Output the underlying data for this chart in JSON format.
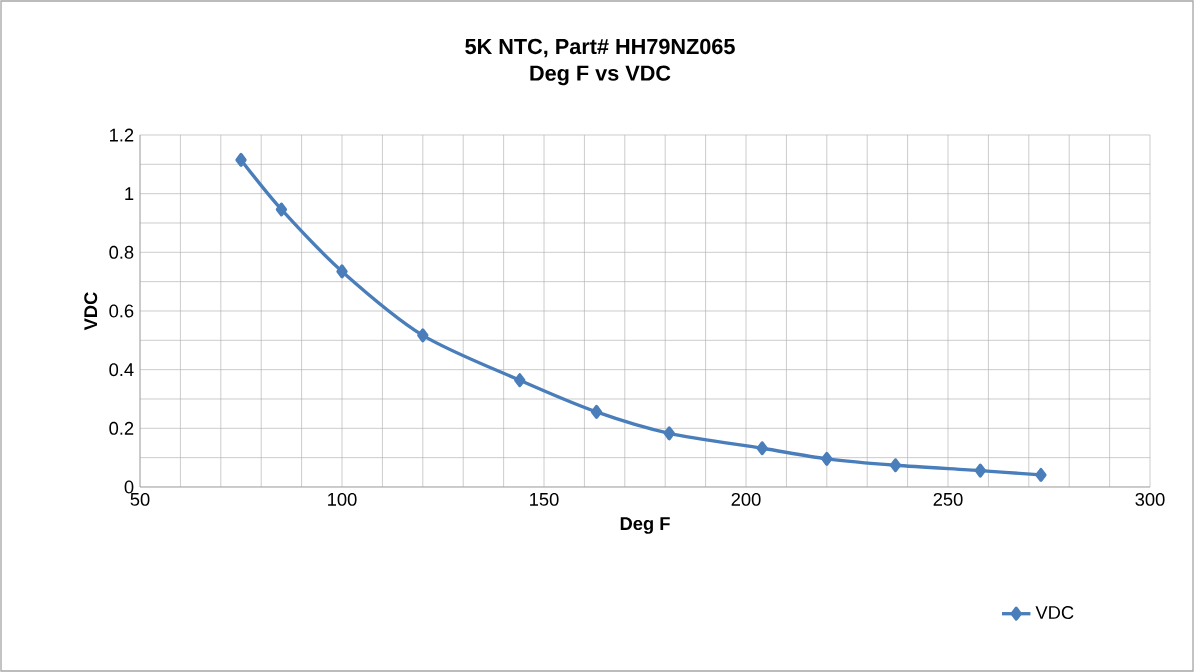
{
  "chart_data": {
    "type": "line",
    "title": "5K NTC, Part# HH79NZ065",
    "subtitle": "Deg F vs VDC",
    "xlabel": "Deg F",
    "ylabel": "VDC",
    "x": [
      75,
      85,
      100,
      120,
      144,
      163,
      181,
      204,
      220,
      237,
      258,
      273
    ],
    "series": [
      {
        "name": "VDC",
        "color": "#4a7ebb",
        "values": [
          1.115,
          0.946,
          0.735,
          0.517,
          0.364,
          0.256,
          0.183,
          0.132,
          0.096,
          0.074,
          0.056,
          0.041
        ]
      }
    ],
    "xlim": [
      50,
      300
    ],
    "xticks": [
      50,
      100,
      150,
      200,
      250,
      300
    ],
    "ylim": [
      0,
      1.2
    ],
    "yticks": [
      0,
      0.2,
      0.4,
      0.6,
      0.8,
      1,
      1.2
    ],
    "grid": true,
    "legend": "bottom right",
    "marker": "diamond",
    "line_style": "solid"
  }
}
